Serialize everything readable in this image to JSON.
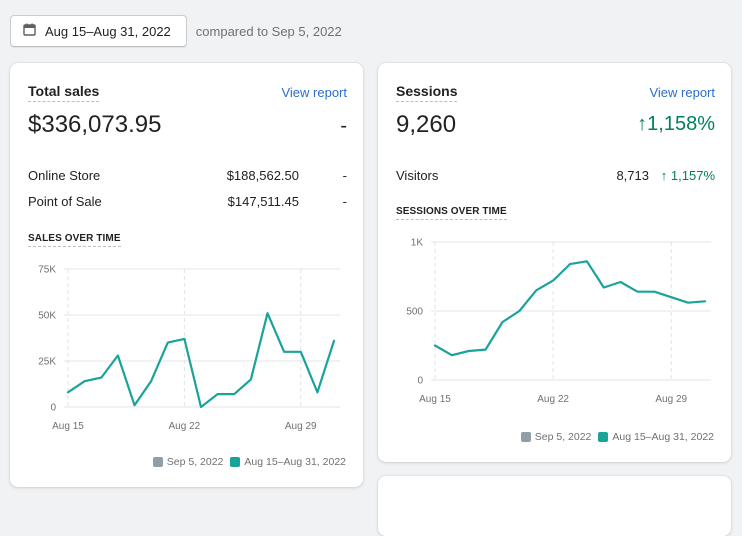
{
  "date_range": {
    "button_label": "Aug 15–Aug 31, 2022",
    "compared_text": "compared to Sep 5, 2022"
  },
  "total_sales": {
    "title": "Total sales",
    "view_report": "View report",
    "value": "$336,073.95",
    "change": "-",
    "rows": [
      {
        "label": "Online Store",
        "value": "$188,562.50",
        "change": "-"
      },
      {
        "label": "Point of Sale",
        "value": "$147,511.45",
        "change": "-"
      }
    ],
    "chart_title": "SALES OVER TIME",
    "legend": {
      "previous": "Sep 5, 2022",
      "current": "Aug 15–Aug 31, 2022"
    }
  },
  "sessions": {
    "title": "Sessions",
    "view_report": "View report",
    "value": "9,260",
    "change": "1,158%",
    "rows": [
      {
        "label": "Visitors",
        "value": "8,713",
        "change": "1,157%"
      }
    ],
    "chart_title": "SESSIONS OVER TIME",
    "legend": {
      "previous": "Sep 5, 2022",
      "current": "Aug 15–Aug 31, 2022"
    }
  },
  "colors": {
    "series_current": "#1aa39a",
    "series_previous": "#919ea8",
    "positive": "#008060",
    "link": "#2c6ecb"
  },
  "icons": {
    "calendar": "calendar-icon",
    "up_arrow": "arrow-up-icon"
  },
  "chart_data": [
    {
      "type": "line",
      "title": "SALES OVER TIME",
      "x": [
        "Aug 15",
        "Aug 16",
        "Aug 17",
        "Aug 18",
        "Aug 19",
        "Aug 20",
        "Aug 21",
        "Aug 22",
        "Aug 23",
        "Aug 24",
        "Aug 25",
        "Aug 26",
        "Aug 27",
        "Aug 28",
        "Aug 29",
        "Aug 30",
        "Aug 31"
      ],
      "x_ticks": [
        "Aug 15",
        "Aug 22",
        "Aug 29"
      ],
      "y_ticks": [
        "0",
        "25K",
        "50K",
        "75K"
      ],
      "ylim": [
        0,
        75000
      ],
      "grid": true,
      "legend": "bottom-right",
      "series": [
        {
          "name": "Aug 15–Aug 31, 2022",
          "values": [
            8000,
            14000,
            16000,
            28000,
            1000,
            14000,
            35000,
            37000,
            0,
            7000,
            7000,
            15000,
            51000,
            30000,
            30000,
            8000,
            36000
          ]
        }
      ]
    },
    {
      "type": "line",
      "title": "SESSIONS OVER TIME",
      "x": [
        "Aug 15",
        "Aug 16",
        "Aug 17",
        "Aug 18",
        "Aug 19",
        "Aug 20",
        "Aug 21",
        "Aug 22",
        "Aug 23",
        "Aug 24",
        "Aug 25",
        "Aug 26",
        "Aug 27",
        "Aug 28",
        "Aug 29",
        "Aug 30",
        "Aug 31"
      ],
      "x_ticks": [
        "Aug 15",
        "Aug 22",
        "Aug 29"
      ],
      "y_ticks": [
        "0",
        "500",
        "1K"
      ],
      "ylim": [
        0,
        1000
      ],
      "grid": true,
      "legend": "bottom-right",
      "series": [
        {
          "name": "Aug 15–Aug 31, 2022",
          "values": [
            250,
            180,
            210,
            220,
            420,
            500,
            650,
            720,
            840,
            860,
            670,
            710,
            640,
            640,
            600,
            560,
            570
          ]
        }
      ]
    }
  ]
}
